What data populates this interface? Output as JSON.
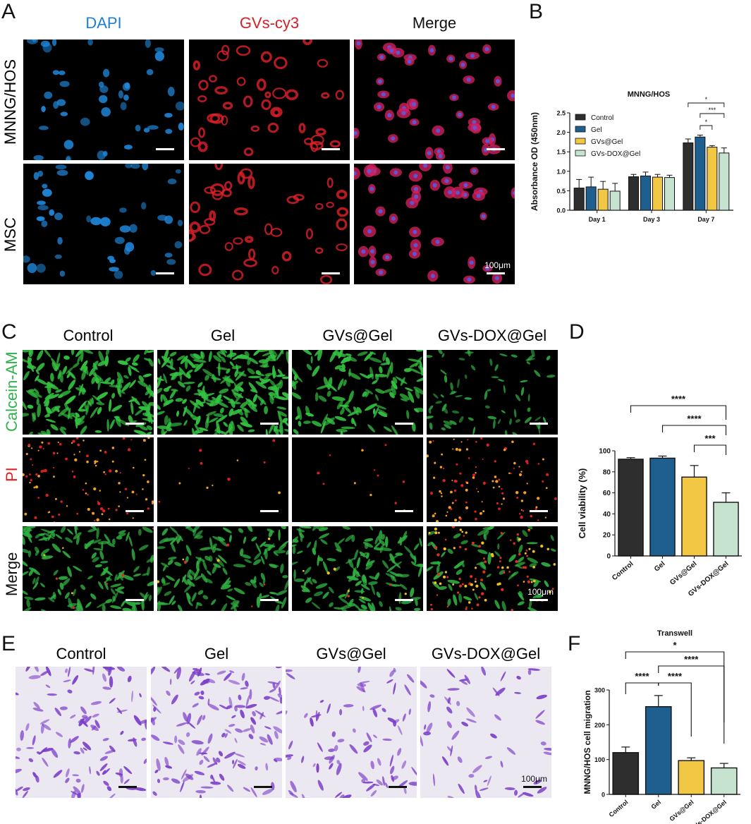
{
  "panels": {
    "A": {
      "label": "A",
      "columns": [
        "DAPI",
        "GVs-cy3",
        "Merge"
      ],
      "column_colors": [
        "#1e7fd0",
        "#d61f26",
        "#111111"
      ],
      "rows": [
        "MNNG/HOS",
        "MSC"
      ],
      "scale": "100μm"
    },
    "B": {
      "label": "B"
    },
    "C": {
      "label": "C",
      "columns": [
        "Control",
        "Gel",
        "GVs@Gel",
        "GVs-DOX@Gel"
      ],
      "rows": [
        "Calcein-AM",
        "PI",
        "Merge"
      ],
      "row_colors": [
        "#2db34a",
        "#e02020",
        "#111111"
      ],
      "scale": "100μm"
    },
    "D": {
      "label": "D"
    },
    "E": {
      "label": "E",
      "columns": [
        "Control",
        "Gel",
        "GVs@Gel",
        "GVs-DOX@Gel"
      ],
      "scale": "100μm"
    },
    "F": {
      "label": "F"
    }
  },
  "chart_data": [
    {
      "id": "B",
      "type": "bar",
      "title": "MNNG/HOS",
      "ylabel": "Absorbance OD (450nm)",
      "xlabel": "",
      "categories": [
        "Day 1",
        "Day 3",
        "Day 7"
      ],
      "ylim": [
        0,
        2.5
      ],
      "yticks": [
        "0.0",
        "0.5",
        "1.0",
        "1.5",
        "2.0",
        "2.5"
      ],
      "legend_position": "top-left",
      "series": [
        {
          "name": "Control",
          "color": "#2e2e2e",
          "values": [
            0.57,
            0.86,
            1.73
          ],
          "errors": [
            0.22,
            0.06,
            0.1
          ]
        },
        {
          "name": "Gel",
          "color": "#1f5f8f",
          "values": [
            0.6,
            0.88,
            1.88
          ],
          "errors": [
            0.25,
            0.1,
            0.05
          ]
        },
        {
          "name": "GVs@Gel",
          "color": "#f2c744",
          "values": [
            0.54,
            0.85,
            1.62
          ],
          "errors": [
            0.2,
            0.07,
            0.04
          ]
        },
        {
          "name": "GVs-DOX@Gel",
          "color": "#c5e3cf",
          "values": [
            0.49,
            0.84,
            1.47
          ],
          "errors": [
            0.2,
            0.06,
            0.13
          ]
        }
      ],
      "significance": [
        {
          "group": "Day 7",
          "from": "Control",
          "to": "GVs-DOX@Gel",
          "label": "*"
        },
        {
          "group": "Day 7",
          "from": "Gel",
          "to": "GVs-DOX@Gel",
          "label": "***"
        },
        {
          "group": "Day 7",
          "from": "Gel",
          "to": "GVs@Gel",
          "label": "*"
        }
      ]
    },
    {
      "id": "D",
      "type": "bar",
      "title": "",
      "ylabel": "Cell viability (%)",
      "xlabel": "",
      "categories": [
        "Control",
        "Gel",
        "GVs@Gel",
        "GVs-DOX@Gel"
      ],
      "ylim": [
        0,
        100
      ],
      "yticks": [
        "0",
        "20",
        "40",
        "60",
        "80",
        "100"
      ],
      "colors": [
        "#2e2e2e",
        "#1f5f8f",
        "#f2c744",
        "#c5e3cf"
      ],
      "values": [
        92,
        93,
        75,
        51
      ],
      "errors": [
        1.5,
        2,
        11,
        9
      ],
      "significance": [
        {
          "from": "Control",
          "to": "GVs-DOX@Gel",
          "label": "****"
        },
        {
          "from": "Gel",
          "to": "GVs-DOX@Gel",
          "label": "****"
        },
        {
          "from": "GVs@Gel",
          "to": "GVs-DOX@Gel",
          "label": "***"
        }
      ]
    },
    {
      "id": "F",
      "type": "bar",
      "title": "Transwell",
      "ylabel": "MNNG/HOS cell migration",
      "xlabel": "",
      "categories": [
        "Control",
        "Gel",
        "GVs@Gel",
        "GVs-DOX@Gel"
      ],
      "ylim": [
        0,
        300
      ],
      "yticks": [
        "0",
        "100",
        "200",
        "300"
      ],
      "colors": [
        "#2e2e2e",
        "#1f5f8f",
        "#f2c744",
        "#c5e3cf"
      ],
      "values": [
        120,
        252,
        97,
        76
      ],
      "errors": [
        16,
        32,
        8,
        13
      ],
      "significance": [
        {
          "from": "Control",
          "to": "GVs-DOX@Gel",
          "label": "*"
        },
        {
          "from": "Gel",
          "to": "GVs-DOX@Gel",
          "label": "****"
        },
        {
          "from": "Control",
          "to": "Gel",
          "label": "****"
        },
        {
          "from": "Gel",
          "to": "GVs@Gel",
          "label": "****"
        }
      ]
    }
  ]
}
